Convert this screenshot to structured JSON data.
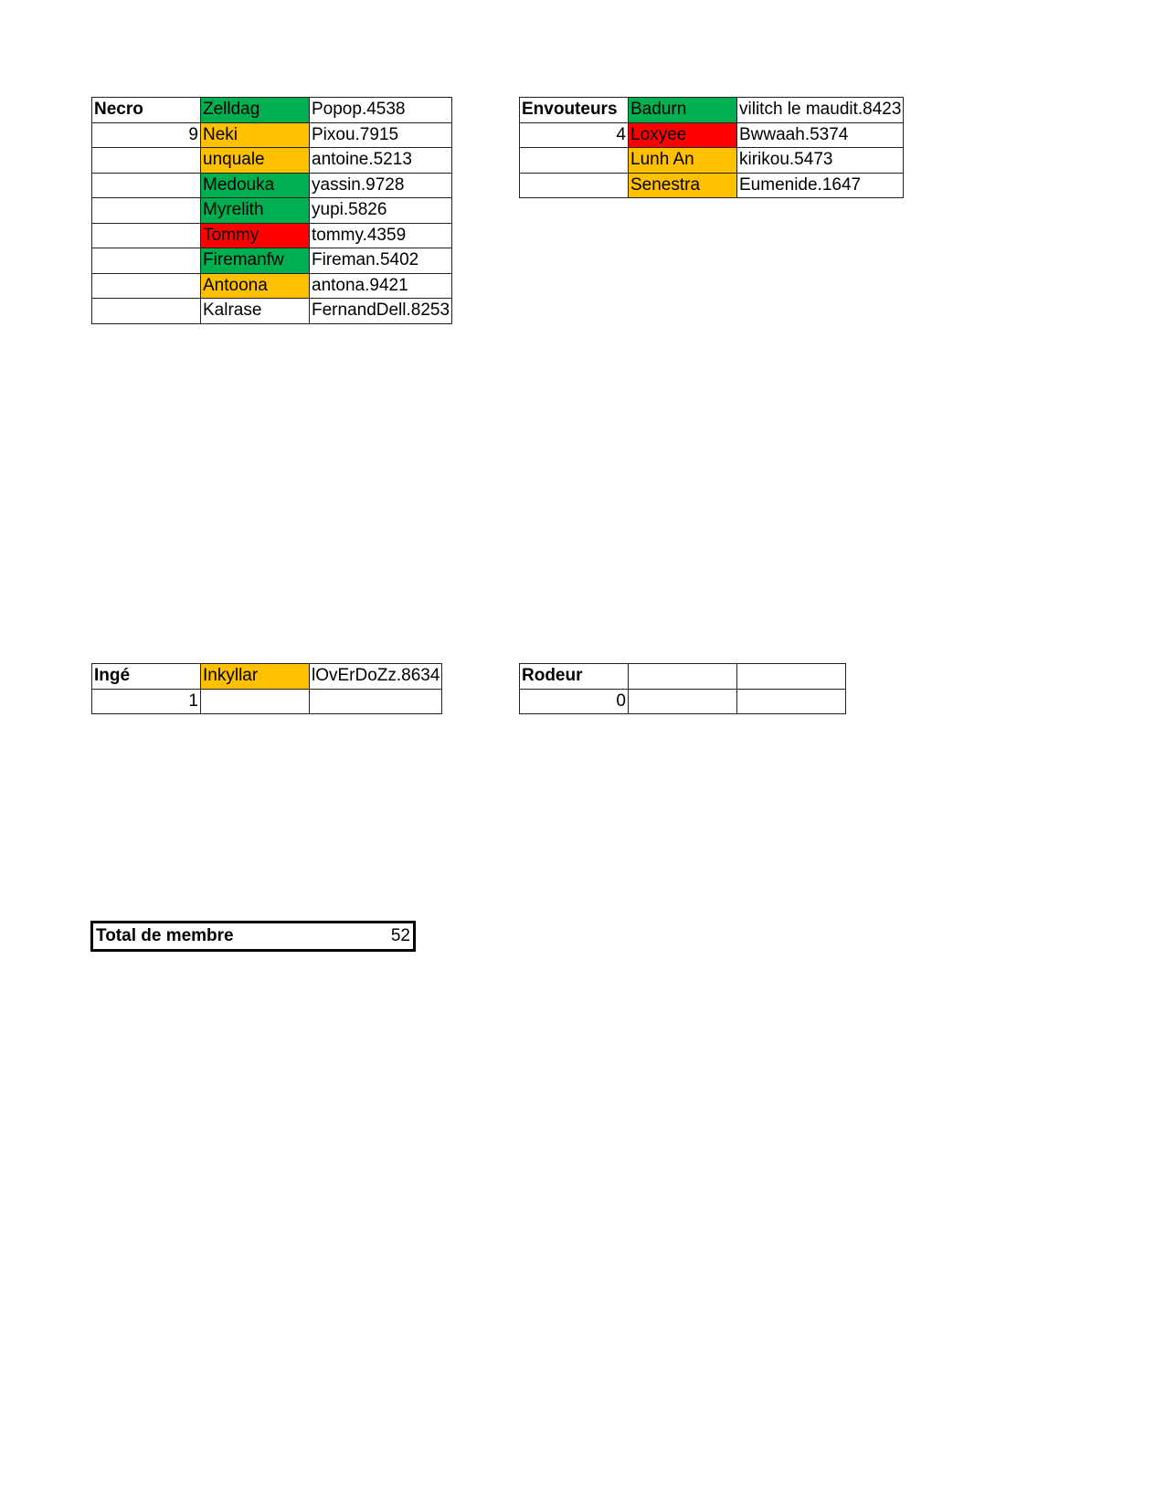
{
  "colors": {
    "green": "#00b050",
    "orange": "#ffc000",
    "red": "#ff0000"
  },
  "groups": [
    {
      "id": "necro",
      "title": "Necro",
      "count": "9",
      "members": [
        {
          "name": "Zelldag",
          "account": "Popop.4538",
          "status": "green"
        },
        {
          "name": "Neki",
          "account": "Pixou.7915",
          "status": "orange"
        },
        {
          "name": "unquale",
          "account": "antoine.5213",
          "status": "orange"
        },
        {
          "name": "Medouka",
          "account": "yassin.9728",
          "status": "green"
        },
        {
          "name": "Myrelith",
          "account": "yupi.5826",
          "status": "green"
        },
        {
          "name": "Tommy",
          "account": "tommy.4359",
          "status": "red"
        },
        {
          "name": "Firemanfw",
          "account": "Fireman.5402",
          "status": "green"
        },
        {
          "name": "Antoona",
          "account": "antona.9421",
          "status": "orange"
        },
        {
          "name": "Kalrase",
          "account": "FernandDell.8253",
          "status": ""
        }
      ]
    },
    {
      "id": "envouteurs",
      "title": "Envouteurs",
      "count": "4",
      "members": [
        {
          "name": "Badurn",
          "account": "vilitch le maudit.8423",
          "status": "green"
        },
        {
          "name": "Loxyee",
          "account": "Bwwaah.5374",
          "status": "red"
        },
        {
          "name": "Lunh An",
          "account": "kirikou.5473",
          "status": "orange"
        },
        {
          "name": "Senestra",
          "account": "Eumenide.1647",
          "status": "orange"
        }
      ]
    },
    {
      "id": "inge",
      "title": "Ingé",
      "count": "1",
      "members": [
        {
          "name": "Inkyllar",
          "account": "lOvErDoZz.8634",
          "status": "orange"
        },
        {
          "name": "",
          "account": "",
          "status": ""
        }
      ]
    },
    {
      "id": "rodeur",
      "title": "Rodeur",
      "count": "0",
      "members": [
        {
          "name": "",
          "account": "",
          "status": ""
        },
        {
          "name": "",
          "account": "",
          "status": ""
        }
      ]
    }
  ],
  "total": {
    "label": "Total de membre",
    "value": "52"
  }
}
